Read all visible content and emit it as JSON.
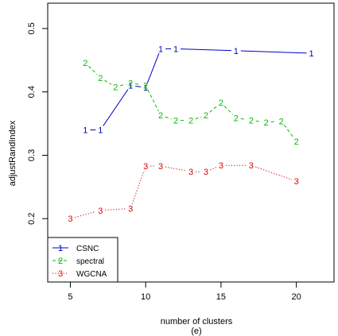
{
  "chart_data": {
    "type": "line",
    "title": "",
    "caption": "(e)",
    "xlabel": "number of clusters",
    "ylabel": "adjustRandIndex",
    "xlim": [
      3.5,
      22.5
    ],
    "ylim": [
      0.1,
      0.54
    ],
    "xticks": [
      5,
      10,
      15,
      20
    ],
    "yticks": [
      0.2,
      0.3,
      0.4,
      0.5
    ],
    "grid": false,
    "legend_position": "bottom-left",
    "series": [
      {
        "name": "CSNC",
        "marker": "1",
        "color": "#0000cc",
        "line_style": "solid",
        "x": [
          6,
          7,
          9,
          10,
          11,
          12,
          16,
          21
        ],
        "y": [
          0.34,
          0.34,
          0.41,
          0.407,
          0.468,
          0.468,
          0.465,
          0.461
        ]
      },
      {
        "name": "spectral",
        "marker": "2",
        "color": "#00bb00",
        "line_style": "dashed",
        "x": [
          6,
          7,
          8,
          9,
          10,
          11,
          12,
          13,
          14,
          15,
          16,
          17,
          18,
          19,
          20
        ],
        "y": [
          0.446,
          0.422,
          0.408,
          0.414,
          0.41,
          0.363,
          0.355,
          0.355,
          0.363,
          0.383,
          0.359,
          0.355,
          0.352,
          0.354,
          0.322
        ]
      },
      {
        "name": "WGCNA",
        "marker": "3",
        "color": "#dd0000",
        "line_style": "dotted",
        "x": [
          5,
          7,
          9,
          10,
          11,
          13,
          14,
          15,
          17,
          20
        ],
        "y": [
          0.2,
          0.213,
          0.216,
          0.283,
          0.283,
          0.274,
          0.274,
          0.284,
          0.284,
          0.259
        ]
      }
    ]
  }
}
